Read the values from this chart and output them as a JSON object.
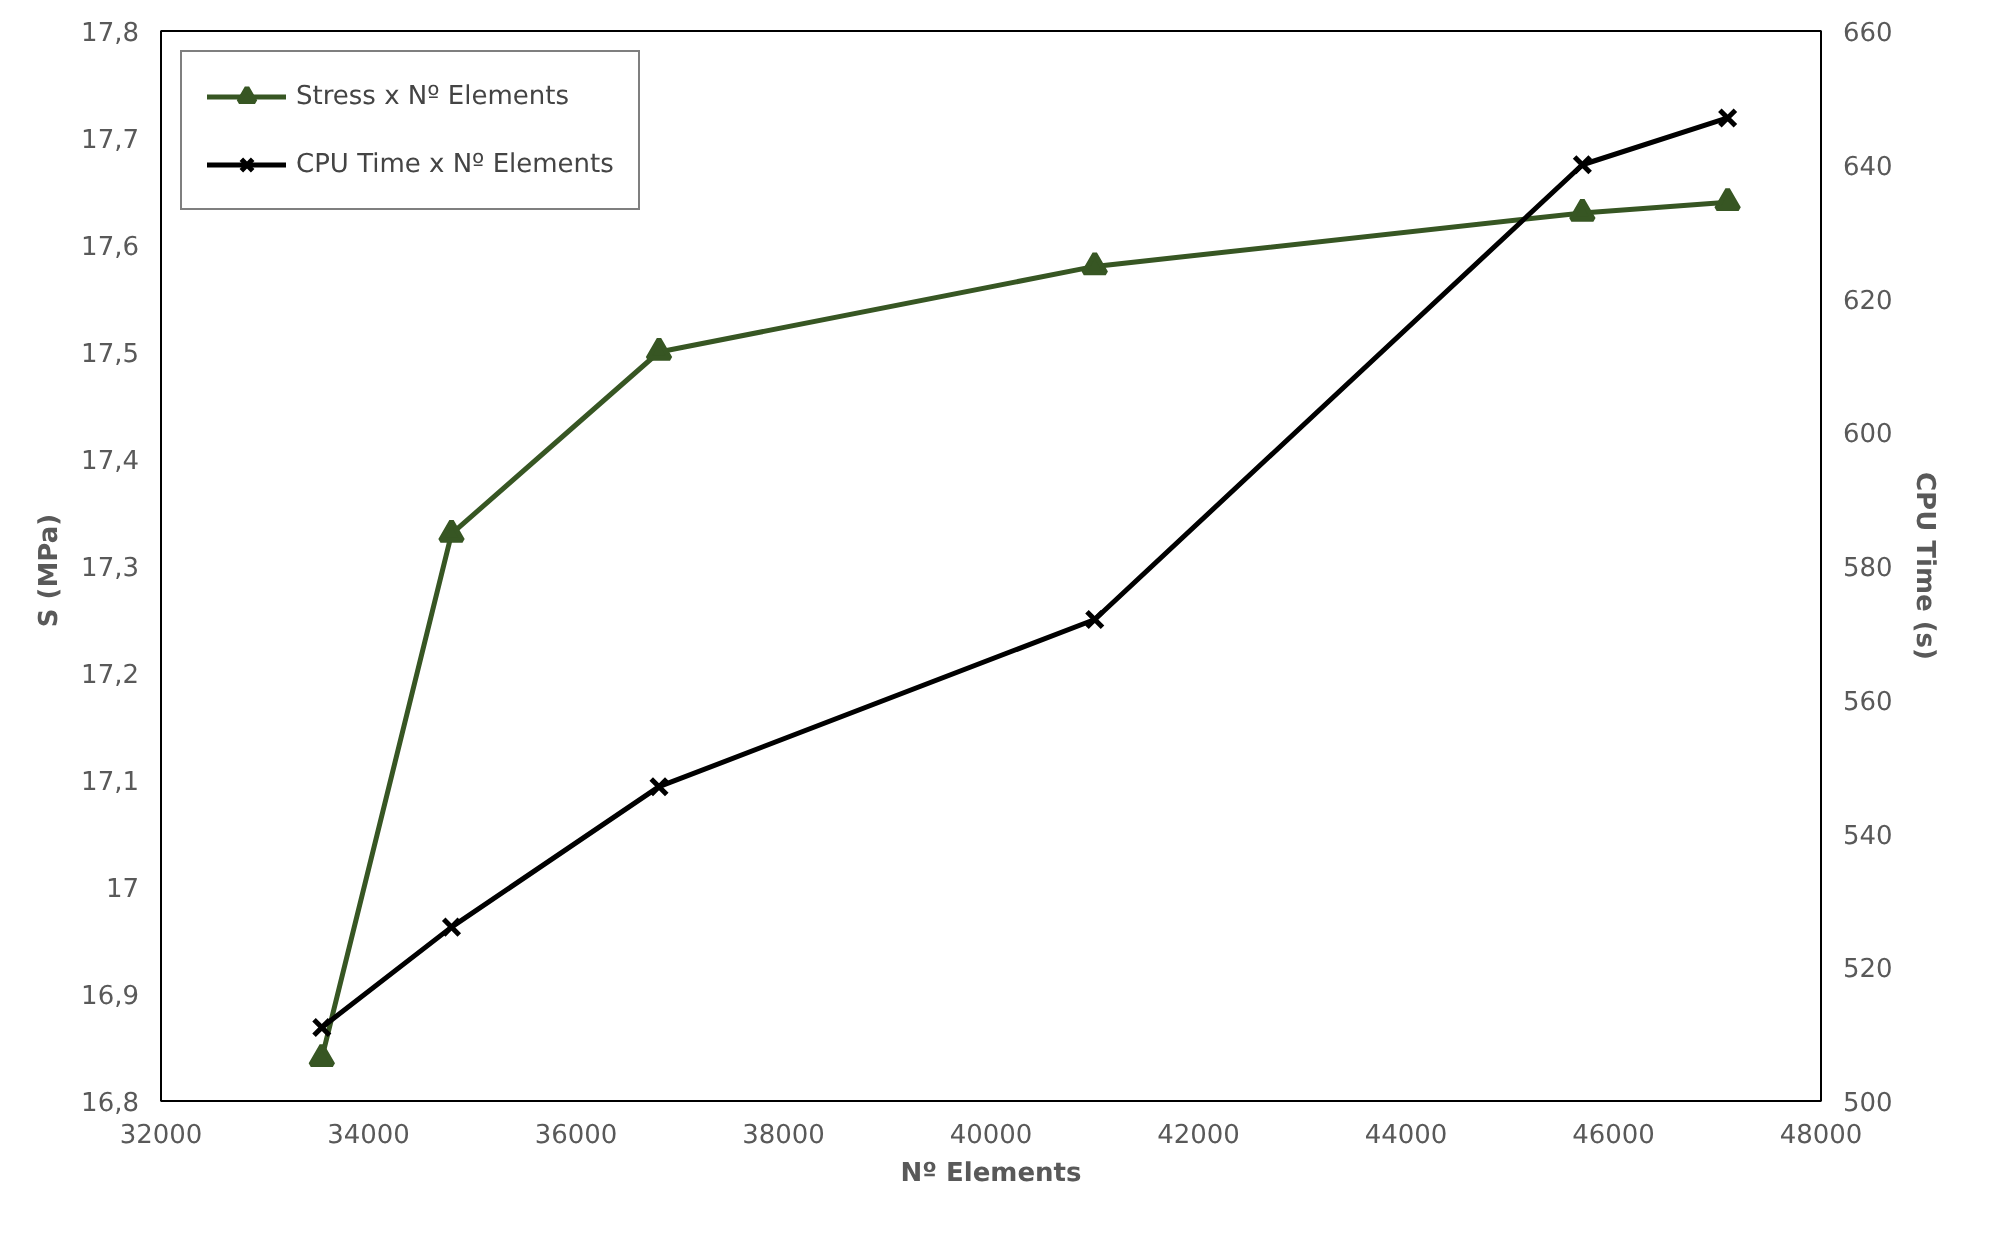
{
  "chart_data": {
    "type": "line",
    "xlabel": "Nº Elements",
    "ylabel": "S  (MPa)",
    "y2label": "CPU Time (s)",
    "x": [
      33550,
      34800,
      36800,
      41000,
      45700,
      47100
    ],
    "series": [
      {
        "name": "Stress x Nº Elements",
        "color": "#375623",
        "marker": "triangle",
        "values": [
          16.84,
          17.33,
          17.5,
          17.58,
          17.63,
          17.64
        ]
      },
      {
        "name": "CPU Time x Nº Elements",
        "color": "#000000",
        "marker": "cross",
        "axis": "y2",
        "values": [
          511,
          526,
          547,
          572,
          640,
          647
        ]
      }
    ],
    "xlim": [
      32000,
      48000
    ],
    "xticks": [
      32000,
      34000,
      36000,
      38000,
      40000,
      42000,
      44000,
      46000,
      48000
    ],
    "ylim": [
      16.8,
      17.8
    ],
    "yticks": [
      {
        "value": 16.8,
        "label": "16,8"
      },
      {
        "value": 16.9,
        "label": "16,9"
      },
      17,
      {
        "value": 17.1,
        "label": "17,1"
      },
      {
        "value": 17.2,
        "label": "17,2"
      },
      {
        "value": 17.3,
        "label": "17,3"
      },
      {
        "value": 17.4,
        "label": "17,4"
      },
      {
        "value": 17.5,
        "label": "17,5"
      },
      {
        "value": 17.6,
        "label": "17,6"
      },
      {
        "value": 17.7,
        "label": "17,7"
      },
      {
        "value": 17.8,
        "label": "17,8"
      }
    ],
    "y2lim": [
      500,
      660
    ],
    "y2ticks": [
      500,
      520,
      540,
      560,
      580,
      600,
      620,
      640,
      660
    ],
    "grid": false,
    "legend": "top left",
    "line_style": "solid"
  }
}
